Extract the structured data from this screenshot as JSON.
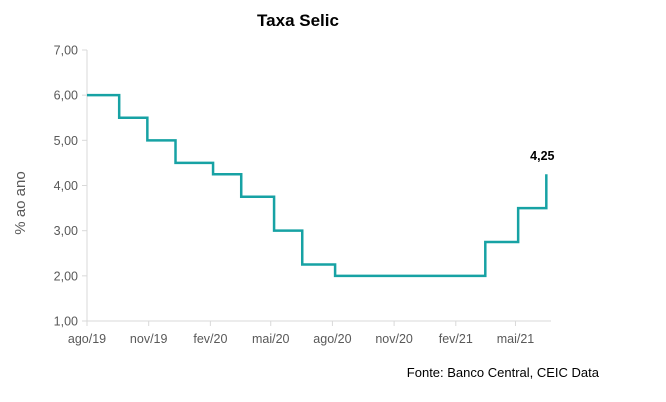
{
  "chart_data": {
    "type": "line",
    "title": "Taxa Selic",
    "xlabel": "",
    "ylabel": "% ao ano",
    "ylim": [
      1.0,
      7.0
    ],
    "yticks": [
      "1,00",
      "2,00",
      "3,00",
      "4,00",
      "5,00",
      "6,00",
      "7,00"
    ],
    "xlim": [
      "2019-08-01",
      "2021-06-20"
    ],
    "xticks": [
      {
        "label": "ago/19",
        "date": "2019-08-01"
      },
      {
        "label": "nov/19",
        "date": "2019-11-01"
      },
      {
        "label": "fev/20",
        "date": "2020-02-01"
      },
      {
        "label": "mai/20",
        "date": "2020-05-01"
      },
      {
        "label": "ago/20",
        "date": "2020-08-01"
      },
      {
        "label": "nov/20",
        "date": "2020-11-01"
      },
      {
        "label": "fev/21",
        "date": "2021-02-01"
      },
      {
        "label": "mai/21",
        "date": "2021-05-01"
      }
    ],
    "series": [
      {
        "color": "#17a2a4",
        "step": true,
        "points": [
          {
            "x": "2019-08-01",
            "y": 6.0
          },
          {
            "x": "2019-09-18",
            "y": 5.5
          },
          {
            "x": "2019-10-30",
            "y": 5.0
          },
          {
            "x": "2019-12-11",
            "y": 4.5
          },
          {
            "x": "2020-02-05",
            "y": 4.25
          },
          {
            "x": "2020-03-18",
            "y": 3.75
          },
          {
            "x": "2020-05-06",
            "y": 3.0
          },
          {
            "x": "2020-06-17",
            "y": 2.25
          },
          {
            "x": "2020-08-05",
            "y": 2.0
          },
          {
            "x": "2021-03-17",
            "y": 2.75
          },
          {
            "x": "2021-05-05",
            "y": 3.5
          },
          {
            "x": "2021-06-16",
            "y": 4.25
          }
        ]
      }
    ],
    "data_label": {
      "text": "4,25",
      "x": "2021-06-16",
      "y": 4.25
    },
    "source": "Fonte: Banco Central, CEIC Data",
    "grid": false
  }
}
